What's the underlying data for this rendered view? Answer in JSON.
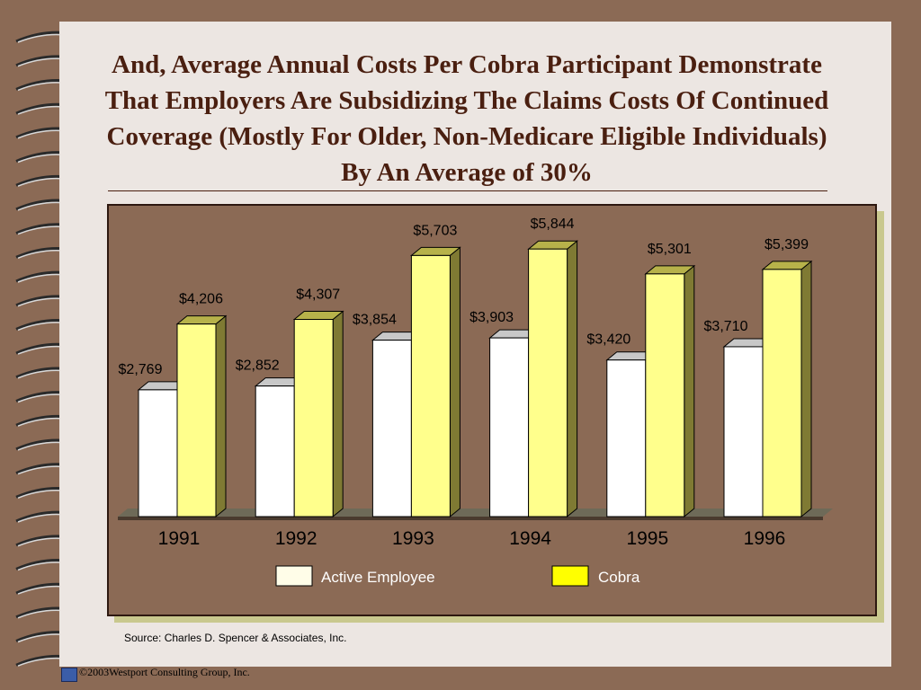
{
  "slide": {
    "title": "And, Average Annual Costs Per Cobra Participant Demonstrate That Employers Are Subsidizing The Claims Costs Of Continued Coverage (Mostly For Older, Non-Medicare Eligible Individuals) By An Average of 30%",
    "source": "Source:  Charles D. Spencer & Associates, Inc.",
    "copyright": "©2003Westport Consulting Group, Inc.",
    "colors": {
      "background": "#8b6a55",
      "paper": "#ece6e2",
      "title_text": "#4a1f10",
      "active_bar": "#ffffff",
      "cobra_bar": "#ffff8c",
      "shadow": "#c9c88e"
    }
  },
  "chart_data": {
    "type": "bar",
    "title": "",
    "xlabel": "",
    "ylabel": "",
    "categories": [
      "1991",
      "1992",
      "1993",
      "1994",
      "1995",
      "1996"
    ],
    "series": [
      {
        "name": "Active Employee",
        "values": [
          2769,
          2852,
          3854,
          3903,
          3420,
          3710
        ],
        "labels": [
          "$2,769",
          "$2,852",
          "$3,854",
          "$3,903",
          "$3,420",
          "$3,710"
        ],
        "color": "#ffffff"
      },
      {
        "name": "Cobra",
        "values": [
          4206,
          4307,
          5703,
          5844,
          5301,
          5399
        ],
        "labels": [
          "$4,206",
          "$4,307",
          "$5,703",
          "$5,844",
          "$5,301",
          "$5,399"
        ],
        "color": "#ffff8c"
      }
    ],
    "ylim": [
      0,
      6000
    ],
    "grid": false,
    "legend_placement": "bottom",
    "legend_colors": [
      "#fffde8",
      "#ffff00"
    ]
  }
}
